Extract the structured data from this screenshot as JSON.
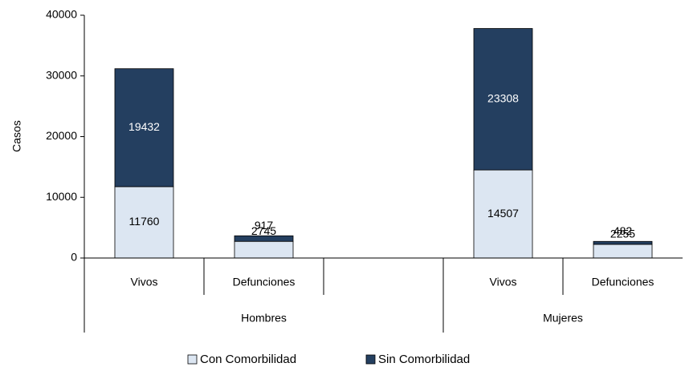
{
  "chart_data": {
    "type": "stacked_bar",
    "y_label": "Casos",
    "categories": [
      "Vivos",
      "Defunciones",
      null,
      "Vivos",
      "Defunciones"
    ],
    "groups": [
      "Hombres",
      "Mujeres"
    ],
    "series": [
      {
        "name": "Con Comorbilidad",
        "color": "#dce6f2",
        "values": [
          11760,
          2745,
          null,
          14507,
          2255
        ]
      },
      {
        "name": "Sin Comorbilidad",
        "color": "#243f60",
        "values": [
          19432,
          917,
          null,
          23308,
          482
        ]
      }
    ],
    "ylim": [
      0,
      40000
    ],
    "yticks": [
      0,
      10000,
      20000,
      30000,
      40000
    ],
    "grid": false,
    "legend": "bottom"
  }
}
